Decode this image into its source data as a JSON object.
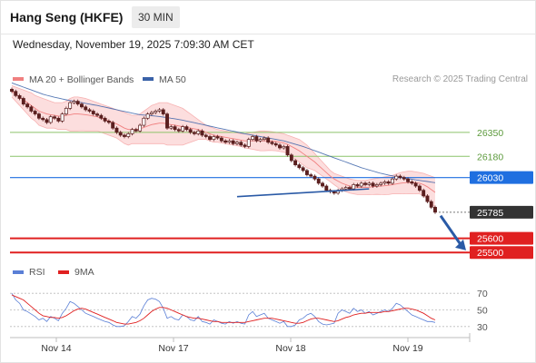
{
  "header": {
    "title": "Hang Seng (HKFE)",
    "timeframe": "30 MIN",
    "datetime": "Wednesday, November 19, 2025 7:09:30 AM CET"
  },
  "colors": {
    "candle": "#5a1f1f",
    "bollinger_fill": "#fbd3d3",
    "ma20": "#f08080",
    "ma50": "#3a62a8",
    "support": "#e02020",
    "resistance": "#8cc36a",
    "pivot": "#1f6fe0",
    "last_price": "#333333",
    "rsi": "#5a7fd6",
    "rsi_ma": "#e02020",
    "arrow": "#2a5aa6"
  },
  "chart_data": [
    {
      "type": "candlestick",
      "legend": {
        "placement": "top-left",
        "items": [
          {
            "label": "MA 20 + Bollinger Bands",
            "color": "#f08080"
          },
          {
            "label": "MA 50",
            "color": "#3a62a8"
          }
        ]
      },
      "watermark": "Research © 2025 Trading Central",
      "x_ticks": [
        "Nov 14",
        "Nov 17",
        "Nov 18",
        "Nov 19"
      ],
      "ylim": [
        25450,
        26670
      ],
      "levels": [
        {
          "value": 26350,
          "label": "26350",
          "kind": "resistance"
        },
        {
          "value": 26180,
          "label": "26180",
          "kind": "resistance"
        },
        {
          "value": 26030,
          "label": "26030",
          "kind": "pivot"
        },
        {
          "value": 25785,
          "label": "25785",
          "kind": "last"
        },
        {
          "value": 25600,
          "label": "25600",
          "kind": "support"
        },
        {
          "value": 25500,
          "label": "25500",
          "kind": "support"
        }
      ],
      "closes": [
        26640,
        26610,
        26590,
        26550,
        26530,
        26500,
        26480,
        26450,
        26440,
        26420,
        26460,
        26450,
        26430,
        26480,
        26520,
        26560,
        26570,
        26550,
        26530,
        26510,
        26500,
        26480,
        26470,
        26450,
        26430,
        26420,
        26380,
        26350,
        26330,
        26320,
        26340,
        26370,
        26360,
        26400,
        26450,
        26480,
        26490,
        26500,
        26510,
        26480,
        26380,
        26390,
        26370,
        26360,
        26390,
        26370,
        26350,
        26340,
        26360,
        26330,
        26320,
        26300,
        26320,
        26310,
        26290,
        26280,
        26290,
        26270,
        26280,
        26260,
        26250,
        26300,
        26320,
        26290,
        26300,
        26310,
        26280,
        26270,
        26260,
        26240,
        26250,
        26190,
        26150,
        26120,
        26100,
        26080,
        26050,
        26040,
        26020,
        25990,
        25970,
        25940,
        25930,
        25920,
        25940,
        25950,
        25960,
        25950,
        25980,
        25970,
        25990,
        25980,
        25990,
        25970,
        25980,
        25990,
        26000,
        25990,
        26020,
        26040,
        26030,
        26020,
        26000,
        25990,
        25970,
        25940,
        25900,
        25860,
        25820,
        25785
      ],
      "ma20": [
        26640,
        26620,
        26600,
        26580,
        26560,
        26540,
        26520,
        26500,
        26490,
        26480,
        26475,
        26470,
        26465,
        26465,
        26470,
        26475,
        26480,
        26480,
        26478,
        26475,
        26470,
        26465,
        26460,
        26450,
        26440,
        26430,
        26420,
        26410,
        26395,
        26380,
        26370,
        26370,
        26370,
        26375,
        26385,
        26395,
        26405,
        26410,
        26415,
        26415,
        26410,
        26405,
        26400,
        26395,
        26390,
        26385,
        26380,
        26375,
        26370,
        26360,
        26350,
        26340,
        26330,
        26325,
        26320,
        26315,
        26310,
        26305,
        26300,
        26295,
        26290,
        26290,
        26290,
        26290,
        26290,
        26290,
        26290,
        26288,
        26285,
        26280,
        26275,
        26265,
        26250,
        26235,
        26220,
        26200,
        26180,
        26160,
        26140,
        26115,
        26090,
        26065,
        26040,
        26020,
        26005,
        25990,
        25980,
        25970,
        25965,
        25960,
        25960,
        25960,
        25962,
        25965,
        25968,
        25970,
        25972,
        25975,
        25980,
        25985,
        25990,
        25993,
        25995,
        25995,
        25993,
        25990,
        25980,
        25965,
        25945,
        25925
      ],
      "bb_upper": [
        26680,
        26670,
        26660,
        26650,
        26640,
        26630,
        26610,
        26600,
        26590,
        26580,
        26570,
        26560,
        26560,
        26560,
        26570,
        26590,
        26600,
        26600,
        26595,
        26590,
        26580,
        26570,
        26560,
        26550,
        26540,
        26530,
        26520,
        26510,
        26500,
        26490,
        26480,
        26470,
        26470,
        26480,
        26500,
        26520,
        26540,
        26550,
        26560,
        26560,
        26560,
        26550,
        26540,
        26530,
        26520,
        26500,
        26480,
        26460,
        26440,
        26420,
        26400,
        26390,
        26380,
        26370,
        26365,
        26360,
        26355,
        26350,
        26345,
        26340,
        26340,
        26345,
        26350,
        26355,
        26360,
        26360,
        26358,
        26355,
        26350,
        26345,
        26340,
        26330,
        26320,
        26310,
        26300,
        26280,
        26260,
        26230,
        26200,
        26170,
        26140,
        26110,
        26080,
        26060,
        26050,
        26040,
        26030,
        26020,
        26015,
        26010,
        26010,
        26010,
        26015,
        26020,
        26025,
        26030,
        26035,
        26040,
        26045,
        26055,
        26065,
        26070,
        26075,
        26075,
        26070,
        26065,
        26060,
        26050,
        26040,
        26030
      ],
      "bb_lower": [
        26600,
        26570,
        26540,
        26510,
        26480,
        26450,
        26430,
        26400,
        26390,
        26380,
        26380,
        26380,
        26370,
        26370,
        26370,
        26360,
        26360,
        26360,
        26361,
        26360,
        26360,
        26360,
        26360,
        26350,
        26340,
        26330,
        26320,
        26310,
        26290,
        26270,
        26260,
        26270,
        26270,
        26270,
        26270,
        26270,
        26270,
        26270,
        26270,
        26270,
        26260,
        26260,
        26260,
        26260,
        26260,
        26270,
        26280,
        26290,
        26300,
        26300,
        26300,
        26290,
        26280,
        26280,
        26275,
        26270,
        26265,
        26260,
        26255,
        26250,
        26240,
        26235,
        26230,
        26225,
        26220,
        26220,
        26222,
        26221,
        26220,
        26215,
        26210,
        26200,
        26180,
        26160,
        26140,
        26120,
        26100,
        26090,
        26080,
        26060,
        26040,
        26020,
        26000,
        25980,
        25960,
        25940,
        25930,
        25920,
        25915,
        25910,
        25910,
        25910,
        25909,
        25910,
        25911,
        25910,
        25909,
        25910,
        25915,
        25915,
        25915,
        25916,
        25915,
        25915,
        25916,
        25915,
        25900,
        25880,
        25850,
        25820
      ],
      "ma50": [
        26700,
        26690,
        26680,
        26670,
        26660,
        26650,
        26640,
        26630,
        26620,
        26612,
        26605,
        26598,
        26592,
        26586,
        26580,
        26575,
        26570,
        26565,
        26560,
        26555,
        26550,
        26545,
        26540,
        26534,
        26528,
        26522,
        26516,
        26510,
        26504,
        26498,
        26492,
        26486,
        26480,
        26475,
        26472,
        26470,
        26468,
        26465,
        26462,
        26458,
        26454,
        26450,
        26446,
        26441,
        26436,
        26430,
        26424,
        26418,
        26412,
        26406,
        26400,
        26394,
        26388,
        26382,
        26376,
        26370,
        26364,
        26358,
        26352,
        26346,
        26340,
        26335,
        26330,
        26325,
        26320,
        26315,
        26310,
        26305,
        26300,
        26295,
        26290,
        26282,
        26274,
        26266,
        26258,
        26250,
        26240,
        26230,
        26220,
        26210,
        26200,
        26190,
        26180,
        26170,
        26160,
        26150,
        26140,
        26130,
        26120,
        26110,
        26100,
        26092,
        26084,
        26076,
        26068,
        26060,
        26054,
        26048,
        26042,
        26036,
        26030,
        26026,
        26022,
        26018,
        26014,
        26010,
        26006,
        26002,
        25998,
        25994
      ],
      "trendline": [
        [
          58,
          25895
        ],
        [
          92,
          25950
        ]
      ]
    },
    {
      "type": "line",
      "legend": {
        "placement": "top-left",
        "items": [
          {
            "label": "RSI",
            "color": "#5a7fd6"
          },
          {
            "label": "9MA",
            "color": "#e02020"
          }
        ]
      },
      "ylim": [
        20,
        80
      ],
      "y_ticks": [
        "70",
        "50",
        "30"
      ],
      "rsi": [
        70,
        62,
        58,
        50,
        48,
        45,
        42,
        38,
        40,
        36,
        42,
        40,
        37,
        46,
        52,
        60,
        58,
        54,
        50,
        46,
        44,
        42,
        40,
        38,
        36,
        35,
        32,
        30,
        30,
        31,
        36,
        42,
        40,
        45,
        55,
        62,
        64,
        63,
        60,
        52,
        40,
        42,
        39,
        38,
        44,
        42,
        38,
        37,
        42,
        36,
        35,
        33,
        38,
        36,
        34,
        33,
        36,
        34,
        36,
        34,
        33,
        44,
        48,
        42,
        44,
        46,
        40,
        38,
        36,
        34,
        36,
        30,
        30,
        32,
        38,
        40,
        44,
        46,
        42,
        36,
        33,
        32,
        33,
        34,
        46,
        50,
        48,
        46,
        52,
        48,
        50,
        46,
        48,
        44,
        46,
        48,
        50,
        48,
        52,
        58,
        56,
        52,
        48,
        44,
        42,
        40,
        38,
        36,
        36,
        35
      ],
      "rsi_ma": [
        68,
        66,
        64,
        62,
        58,
        54,
        50,
        46,
        43,
        42,
        41,
        41,
        40,
        41,
        43,
        46,
        49,
        51,
        52,
        51,
        49,
        47,
        45,
        43,
        41,
        39,
        37,
        35,
        34,
        33,
        33,
        34,
        35,
        37,
        40,
        44,
        48,
        51,
        53,
        53,
        52,
        50,
        48,
        46,
        44,
        42,
        41,
        40,
        40,
        39,
        38,
        37,
        36,
        36,
        35,
        35,
        35,
        35,
        35,
        35,
        35,
        36,
        37,
        38,
        39,
        40,
        40,
        40,
        39,
        38,
        37,
        36,
        35,
        34,
        34,
        35,
        37,
        39,
        40,
        40,
        39,
        38,
        37,
        36,
        37,
        39,
        41,
        42,
        44,
        45,
        46,
        46,
        47,
        47,
        47,
        47,
        48,
        48,
        49,
        50,
        51,
        52,
        52,
        51,
        50,
        48,
        46,
        43,
        40,
        38
      ]
    }
  ]
}
